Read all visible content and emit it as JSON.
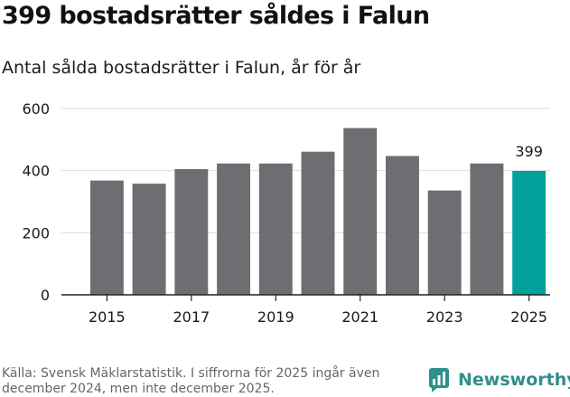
{
  "headline": "399 bostadsrätter såldes i Falun",
  "source": "Källa: Svensk Mäklarstatistik. I siffrorna för 2025 ingår även december 2024, men inte december 2025.",
  "brand": {
    "name": "Newsworthy",
    "icon": "newsworthy-logo-icon",
    "color": "#2f8f8b"
  },
  "colors": {
    "bar": "#6e6d72",
    "highlight": "#00a19a",
    "grid": "#dddddd"
  },
  "chart_data": {
    "type": "bar",
    "title": "Antal sålda bostadsrätter i Falun, år för år",
    "xlabel": "",
    "ylabel": "",
    "categories": [
      "2015",
      "2016",
      "2017",
      "2018",
      "2019",
      "2020",
      "2021",
      "2022",
      "2023",
      "2024",
      "2025"
    ],
    "values": [
      368,
      358,
      405,
      423,
      423,
      461,
      537,
      447,
      336,
      423,
      399
    ],
    "highlight_index": 10,
    "data_labels": [
      {
        "category": "2025",
        "text": "399"
      }
    ],
    "xticks": [
      "2015",
      "2017",
      "2019",
      "2021",
      "2023",
      "2025"
    ],
    "yticks": [
      0,
      200,
      400,
      600
    ],
    "ylim": [
      0,
      600
    ],
    "grid": true,
    "legend": "none"
  }
}
